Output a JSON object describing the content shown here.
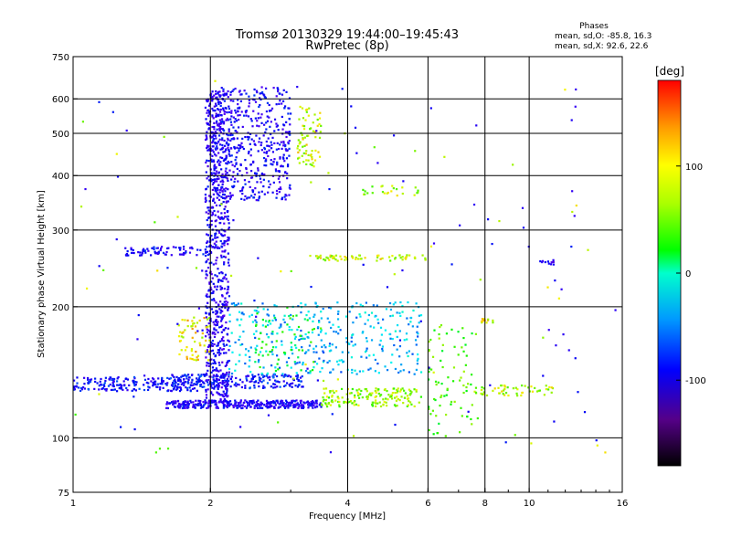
{
  "chart_data": {
    "type": "scatter",
    "title": "Tromsø 20130329 19:44:00–19:45:43",
    "subtitle": "RwPretec (8p)",
    "xlabel": "Frequency [MHz]",
    "ylabel": "Stationary phase Virtual Height [km]",
    "x_scale": "log",
    "y_scale": "log",
    "xlim": [
      1,
      16
    ],
    "ylim": [
      75,
      750
    ],
    "x_ticks": [
      1,
      2,
      4,
      6,
      8,
      10,
      16
    ],
    "y_ticks": [
      75,
      100,
      200,
      300,
      400,
      500,
      600,
      750
    ],
    "grid": true,
    "colorbar": {
      "title": "[deg]",
      "range": [
        -180,
        180
      ],
      "ticks": [
        -100,
        0,
        100
      ]
    },
    "legend": {
      "title": "Phases",
      "lines": [
        "mean, sd,O: -85.8, 16.3",
        "mean, sd,X:  92.6, 22.6"
      ]
    },
    "clusters": [
      {
        "x": [
          1.0,
          1.9
        ],
        "y": [
          128,
          138
        ],
        "phase": -95,
        "n": 220
      },
      {
        "x": [
          1.6,
          3.5
        ],
        "y": [
          117,
          122
        ],
        "phase": -105,
        "n": 360
      },
      {
        "x": [
          3.5,
          5.8
        ],
        "y": [
          118,
          130
        ],
        "phase": 85,
        "n": 160
      },
      {
        "x": [
          1.6,
          3.2
        ],
        "y": [
          130,
          140
        ],
        "phase": -90,
        "n": 200
      },
      {
        "x": [
          1.95,
          2.2
        ],
        "y": [
          120,
          620
        ],
        "phase": -110,
        "n": 700
      },
      {
        "x": [
          2.0,
          3.0
        ],
        "y": [
          350,
          640
        ],
        "phase": -105,
        "n": 520
      },
      {
        "x": [
          3.1,
          3.5
        ],
        "y": [
          420,
          590
        ],
        "phase": 100,
        "n": 70
      },
      {
        "x": [
          1.3,
          2.0
        ],
        "y": [
          262,
          275
        ],
        "phase": -100,
        "n": 80
      },
      {
        "x": [
          1.7,
          2.0
        ],
        "y": [
          150,
          190
        ],
        "phase": 110,
        "n": 60
      },
      {
        "x": [
          3.3,
          6.0
        ],
        "y": [
          255,
          263
        ],
        "phase": 100,
        "n": 70
      },
      {
        "x": [
          2.2,
          5.8
        ],
        "y": [
          140,
          205
        ],
        "phase": -40,
        "n": 360
      },
      {
        "x": [
          4.3,
          5.8
        ],
        "y": [
          360,
          380
        ],
        "phase": 90,
        "n": 25
      },
      {
        "x": [
          7.5,
          11.3
        ],
        "y": [
          125,
          132
        ],
        "phase": 95,
        "n": 55
      },
      {
        "x": [
          7.8,
          8.4
        ],
        "y": [
          183,
          188
        ],
        "phase": 110,
        "n": 15
      },
      {
        "x": [
          6.0,
          7.5
        ],
        "y": [
          100,
          185
        ],
        "phase": 60,
        "n": 80
      },
      {
        "x": [
          10.5,
          11.5
        ],
        "y": [
          250,
          256
        ],
        "phase": -110,
        "n": 12
      },
      {
        "x": [
          2.5,
          3.4
        ],
        "y": [
          140,
          200
        ],
        "phase": 40,
        "n": 60
      }
    ],
    "scattered": {
      "x": [
        1.0,
        16.0
      ],
      "y": [
        90,
        660
      ],
      "n": 140
    }
  }
}
